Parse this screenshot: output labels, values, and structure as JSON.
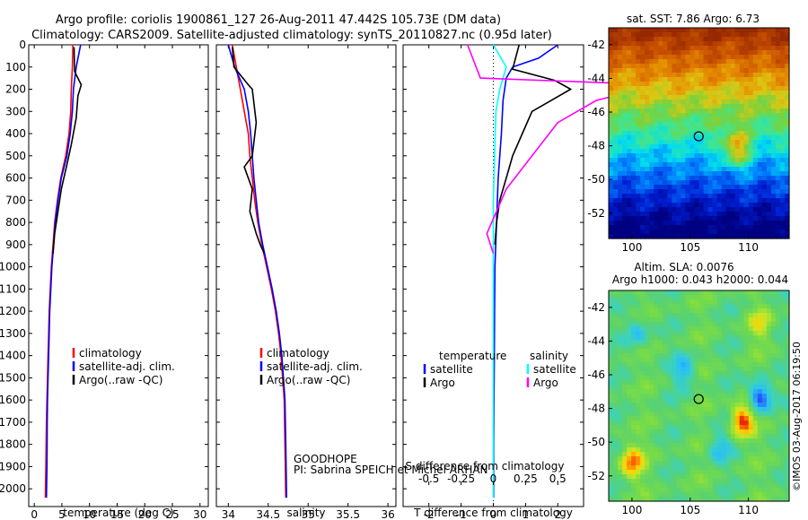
{
  "header": {
    "line1": "Argo profile: coriolis 1900861_127 26-Aug-2011 47.442S 105.73E (DM data)",
    "line2": "Climatology: CARS2009. Satellite-adjusted climatology: synTS_20110827.nc (0.95d later)"
  },
  "colors": {
    "climatology": "#ff0000",
    "satellite": "#0000ff",
    "argo": "#000000",
    "sat_s": "#00ffff",
    "argo_s": "#ff00ff"
  },
  "chart_data": [
    {
      "type": "line",
      "id": "temperature",
      "xlabel": "temperature (deg C)",
      "ylabel": "",
      "xlim": [
        -1,
        31.5
      ],
      "ylim": [
        2080,
        0
      ],
      "xticks": [
        0,
        5,
        10,
        15,
        20,
        25,
        30
      ],
      "yticks": [
        0,
        100,
        200,
        300,
        400,
        500,
        600,
        700,
        800,
        900,
        1000,
        1100,
        1200,
        1300,
        1400,
        1500,
        1600,
        1700,
        1800,
        1900,
        2000
      ],
      "legend": [
        "climatology",
        "satellite-adj. clim.",
        "Argo(..raw -QC)"
      ],
      "legend_position": "center",
      "series": [
        {
          "name": "climatology",
          "color": "#ff0000",
          "x": [
            7.0,
            6.9,
            6.7,
            6.6,
            6.3,
            5.7,
            4.8,
            4.2,
            3.7,
            3.4,
            3.1,
            2.9,
            2.7,
            2.6,
            2.5,
            2.4,
            2.3,
            2.2,
            2.1,
            2.0
          ],
          "y": [
            0,
            100,
            200,
            300,
            400,
            500,
            600,
            700,
            800,
            900,
            1000,
            1100,
            1200,
            1300,
            1400,
            1500,
            1600,
            1700,
            1900,
            2040
          ]
        },
        {
          "name": "satellite-adj. clim.",
          "color": "#0000ff",
          "x": [
            8.4,
            7.6,
            7.1,
            6.9,
            6.5,
            5.9,
            4.9,
            4.3,
            3.8,
            3.5,
            3.2,
            3.0,
            2.8,
            2.7,
            2.6,
            2.5,
            2.4,
            2.35,
            2.3,
            2.2
          ],
          "y": [
            0,
            100,
            200,
            300,
            400,
            500,
            600,
            700,
            800,
            900,
            1000,
            1100,
            1200,
            1300,
            1400,
            1500,
            1600,
            1700,
            1900,
            2040
          ]
        },
        {
          "name": "Argo(..raw -QC)",
          "color": "#000000",
          "x": [
            7.2,
            7.3,
            8.5,
            7.9,
            7.6,
            6.7,
            5.9,
            4.9,
            4.3,
            3.7,
            3.4
          ],
          "y": [
            10,
            120,
            180,
            230,
            330,
            450,
            540,
            650,
            750,
            850,
            940
          ]
        }
      ]
    },
    {
      "type": "line",
      "id": "salinity",
      "xlabel": "salinity",
      "ylabel": "",
      "xlim": [
        33.85,
        36.1
      ],
      "ylim": [
        2080,
        0
      ],
      "xticks": [
        34,
        34.5,
        35,
        35.5,
        36
      ],
      "legend": [
        "climatology",
        "satellite-adj. clim.",
        "Argo(..raw -QC)"
      ],
      "legend_position": "center",
      "annotations": [
        "GOODHOPE",
        "PI: Sabrina SPEICH et Michel ARHAN"
      ],
      "series": [
        {
          "name": "climatology",
          "color": "#ff0000",
          "x": [
            34.05,
            34.1,
            34.15,
            34.2,
            34.25,
            34.27,
            34.3,
            34.33,
            34.37,
            34.42,
            34.48,
            34.54,
            34.59,
            34.63,
            34.66,
            34.68,
            34.7,
            34.71,
            34.72
          ],
          "y": [
            0,
            100,
            200,
            300,
            400,
            500,
            600,
            700,
            800,
            900,
            1000,
            1100,
            1200,
            1300,
            1400,
            1500,
            1600,
            1800,
            2040
          ]
        },
        {
          "name": "satellite-adj. clim.",
          "color": "#0000ff",
          "x": [
            34.0,
            34.08,
            34.2,
            34.25,
            34.28,
            34.3,
            34.32,
            34.35,
            34.38,
            34.43,
            34.49,
            34.55,
            34.6,
            34.64,
            34.67,
            34.69,
            34.71,
            34.72,
            34.73
          ],
          "y": [
            0,
            100,
            200,
            300,
            400,
            500,
            600,
            700,
            800,
            900,
            1000,
            1100,
            1200,
            1300,
            1400,
            1500,
            1600,
            1800,
            2040
          ]
        },
        {
          "name": "Argo(..raw -QC)",
          "color": "#000000",
          "x": [
            34.05,
            34.07,
            34.25,
            34.3,
            34.35,
            34.3,
            34.2,
            34.3,
            34.27,
            34.35,
            34.4,
            34.45
          ],
          "y": [
            10,
            100,
            180,
            200,
            350,
            500,
            550,
            650,
            750,
            850,
            900,
            940
          ]
        }
      ]
    },
    {
      "type": "line",
      "id": "difference",
      "xlabel": "T difference from climatology",
      "x2label": "S difference from climatology",
      "ylabel": "",
      "xlim": [
        -2.8,
        2.8
      ],
      "ylim": [
        2080,
        0
      ],
      "xticks": [
        -2,
        -1,
        0,
        1,
        2
      ],
      "x2ticks": [
        -0.5,
        -0.25,
        0,
        0.25,
        0.5
      ],
      "legend": [
        "temperature",
        "satellite",
        "Argo",
        "salinity",
        "satellite",
        "Argo"
      ],
      "legend_position": "center",
      "series": [
        {
          "name": "T satellite",
          "color": "#0000ff",
          "x": [
            2.0,
            1.4,
            0.6,
            0.4,
            0.3,
            0.25,
            0.15,
            0.1,
            0.05,
            0.04,
            0.03,
            0.02,
            0.01,
            0.01
          ],
          "y": [
            0,
            60,
            100,
            150,
            250,
            400,
            600,
            800,
            1000,
            1200,
            1400,
            1600,
            1800,
            2040
          ]
        },
        {
          "name": "T Argo",
          "color": "#000000",
          "x": [
            0.8,
            0.6,
            1.9,
            2.4,
            1.8,
            1.2,
            0.9,
            0.6,
            0.4,
            0.2,
            0.1,
            0.05
          ],
          "y": [
            0,
            110,
            160,
            200,
            250,
            300,
            400,
            500,
            600,
            700,
            800,
            900
          ]
        },
        {
          "name": "S satellite",
          "color": "#00ffff",
          "x": [
            0.0,
            0.1,
            0.05,
            0.02,
            0.01,
            0.0,
            0.0,
            0.0,
            0.0,
            0.0
          ],
          "y": [
            0,
            100,
            200,
            300,
            500,
            700,
            1000,
            1400,
            1800,
            2040
          ]
        },
        {
          "name": "S Argo",
          "color": "#ff00ff",
          "x": [
            -0.2,
            -0.1,
            1.3,
            0.8,
            0.5,
            0.3,
            0.1,
            -0.05,
            0.0
          ],
          "y": [
            0,
            150,
            180,
            250,
            350,
            500,
            650,
            850,
            940
          ]
        }
      ]
    },
    {
      "type": "heatmap",
      "id": "sst-map",
      "title": "sat. SST: 7.86 Argo: 6.73",
      "xlim": [
        98,
        113.5
      ],
      "ylim": [
        -53.5,
        -41
      ],
      "xticks": [
        100,
        105,
        110
      ],
      "yticks": [
        -42,
        -44,
        -46,
        -48,
        -50,
        -52
      ],
      "marker": {
        "lon": 105.73,
        "lat": -47.44
      }
    },
    {
      "type": "heatmap",
      "id": "sla-map",
      "title": "Altim. SLA: 0.0076",
      "subtitle": "Argo h1000: 0.043 h2000: 0.044",
      "xlim": [
        98,
        113.5
      ],
      "ylim": [
        -53.5,
        -41
      ],
      "xticks": [
        100,
        105,
        110
      ],
      "yticks": [
        -42,
        -44,
        -46,
        -48,
        -50,
        -52
      ],
      "marker": {
        "lon": 105.73,
        "lat": -47.44
      }
    }
  ],
  "watermark": "©IMOS 03-Aug-2017 06:19:50"
}
